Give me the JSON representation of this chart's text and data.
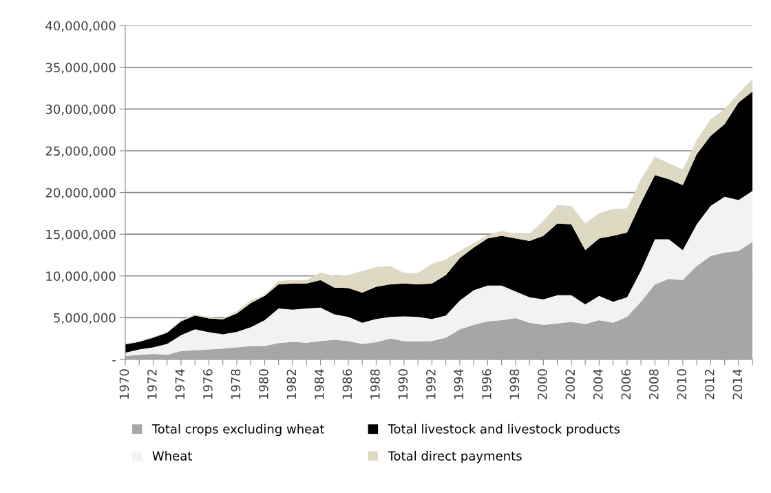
{
  "chart_data": {
    "type": "area",
    "stacked": true,
    "categories": [
      "1970",
      null,
      "1972",
      null,
      "1974",
      null,
      "1976",
      null,
      "1978",
      null,
      "1980",
      null,
      "1982",
      null,
      "1984",
      null,
      "1986",
      null,
      "1988",
      null,
      "1990",
      null,
      "1992",
      null,
      "1994",
      null,
      "1996",
      null,
      "1998",
      null,
      "2000",
      null,
      "2002",
      null,
      "2004",
      null,
      "2006",
      null,
      "2008",
      null,
      "2010",
      null,
      "2012",
      null,
      "2014",
      null
    ],
    "series": [
      {
        "name": "Total crops excluding wheat",
        "color": "#a6a6a6",
        "values": [
          400000,
          550000,
          650000,
          550000,
          1000000,
          1100000,
          1200000,
          1300000,
          1450000,
          1600000,
          1600000,
          1950000,
          2100000,
          2000000,
          2200000,
          2350000,
          2200000,
          1850000,
          2050000,
          2500000,
          2200000,
          2150000,
          2200000,
          2600000,
          3600000,
          4150000,
          4550000,
          4700000,
          4950000,
          4400000,
          4150000,
          4300000,
          4500000,
          4250000,
          4700000,
          4400000,
          5100000,
          6900000,
          9000000,
          9650000,
          9500000,
          11200000,
          12400000,
          12800000,
          13000000,
          14100000
        ]
      },
      {
        "name": "Wheat",
        "color": "#f2f2f2",
        "values": [
          400000,
          650000,
          800000,
          1300000,
          1900000,
          2500000,
          2050000,
          1700000,
          1850000,
          2250000,
          3100000,
          4150000,
          3850000,
          4100000,
          4000000,
          3050000,
          2900000,
          2550000,
          2800000,
          2600000,
          2950000,
          2950000,
          2650000,
          2650000,
          3450000,
          4150000,
          4300000,
          4150000,
          3200000,
          3050000,
          3050000,
          3400000,
          3200000,
          2350000,
          2900000,
          2500000,
          2350000,
          3750000,
          5400000,
          4750000,
          3600000,
          5000000,
          6000000,
          6700000,
          6100000,
          6100000
        ]
      },
      {
        "name": "Total livestock and livestock products",
        "color": "#000000",
        "values": [
          1000000,
          900000,
          1150000,
          1350000,
          1650000,
          1650000,
          1650000,
          1800000,
          2200000,
          2900000,
          2900000,
          2900000,
          3150000,
          3000000,
          3300000,
          3200000,
          3450000,
          3600000,
          3850000,
          3900000,
          3950000,
          3900000,
          4250000,
          4850000,
          5100000,
          5100000,
          5650000,
          5950000,
          6350000,
          6750000,
          7600000,
          8600000,
          8500000,
          6500000,
          6900000,
          7900000,
          7750000,
          8150000,
          7700000,
          7200000,
          7800000,
          8400000,
          8400000,
          8700000,
          11700000,
          11900000
        ]
      },
      {
        "name": "Total direct payments",
        "color": "#ddd9c3",
        "values": [
          100000,
          100000,
          100000,
          100000,
          150000,
          150000,
          150000,
          100000,
          300000,
          300000,
          150000,
          400000,
          400000,
          400000,
          900000,
          1400000,
          1550000,
          2600000,
          2350000,
          2200000,
          1250000,
          1350000,
          2350000,
          1900000,
          850000,
          550000,
          400000,
          600000,
          550000,
          850000,
          1800000,
          2200000,
          2200000,
          3200000,
          3050000,
          3200000,
          2900000,
          2800000,
          2200000,
          1900000,
          1900000,
          1700000,
          2000000,
          1800000,
          1100000,
          1500000
        ]
      }
    ],
    "ylim": [
      0,
      40000000
    ],
    "yticks": [
      {
        "value": 0,
        "label": "-"
      },
      {
        "value": 5000000,
        "label": "5,000,000"
      },
      {
        "value": 10000000,
        "label": "10,000,000"
      },
      {
        "value": 15000000,
        "label": "15,000,000"
      },
      {
        "value": 20000000,
        "label": "20,000,000"
      },
      {
        "value": 25000000,
        "label": "25,000,000"
      },
      {
        "value": 30000000,
        "label": "30,000,000"
      },
      {
        "value": 35000000,
        "label": "35,000,000"
      },
      {
        "value": 40000000,
        "label": "40,000,000"
      }
    ],
    "grid": "y",
    "legend": "bottom"
  }
}
